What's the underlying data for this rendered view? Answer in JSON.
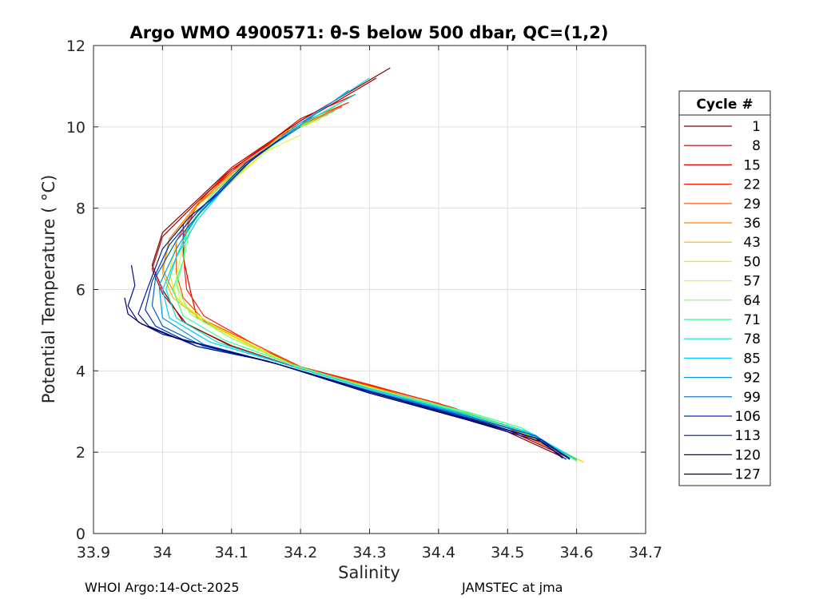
{
  "chart_data": {
    "type": "line",
    "title": "Argo WMO 4900571: θ-S below 500 dbar,  QC=(1,2)",
    "xlabel": "Salinity",
    "ylabel": "Potential Temperature ( °C)",
    "xlim": [
      33.9,
      34.7
    ],
    "ylim": [
      0,
      12
    ],
    "xticks": [
      33.9,
      34.0,
      34.1,
      34.2,
      34.3,
      34.4,
      34.5,
      34.6,
      34.7
    ],
    "yticks": [
      0,
      2,
      4,
      6,
      8,
      10,
      12
    ],
    "grid": true,
    "legend": {
      "title": "Cycle #",
      "position": "right",
      "entries": [
        {
          "label": "1",
          "color": "#800000"
        },
        {
          "label": "8",
          "color": "#b00000"
        },
        {
          "label": "15",
          "color": "#d90000"
        },
        {
          "label": "22",
          "color": "#ff1a00"
        },
        {
          "label": "29",
          "color": "#ff4d00"
        },
        {
          "label": "36",
          "color": "#ff8000"
        },
        {
          "label": "43",
          "color": "#ffb300"
        },
        {
          "label": "50",
          "color": "#ffe600"
        },
        {
          "label": "57",
          "color": "#ccff33"
        },
        {
          "label": "64",
          "color": "#80ff66"
        },
        {
          "label": "71",
          "color": "#33ff99"
        },
        {
          "label": "78",
          "color": "#00e6cc"
        },
        {
          "label": "85",
          "color": "#00ccff"
        },
        {
          "label": "92",
          "color": "#0099e6"
        },
        {
          "label": "99",
          "color": "#0066cc"
        },
        {
          "label": "106",
          "color": "#0033b3"
        },
        {
          "label": "113",
          "color": "#001a99"
        },
        {
          "label": "120",
          "color": "#000d80"
        },
        {
          "label": "127",
          "color": "#000066"
        }
      ]
    },
    "series": [
      {
        "name": "1",
        "color": "#800000",
        "points": [
          [
            34.33,
            11.45
          ],
          [
            34.2,
            10.15
          ],
          [
            34.1,
            9.0
          ],
          [
            34.05,
            8.2
          ],
          [
            34.0,
            7.4
          ],
          [
            33.985,
            6.6
          ],
          [
            34.0,
            6.0
          ],
          [
            34.03,
            5.2
          ],
          [
            34.1,
            4.6
          ],
          [
            34.2,
            4.05
          ],
          [
            34.3,
            3.6
          ],
          [
            34.4,
            3.05
          ],
          [
            34.5,
            2.5
          ],
          [
            34.58,
            1.88
          ]
        ]
      },
      {
        "name": "8",
        "color": "#b00000",
        "points": [
          [
            34.31,
            11.2
          ],
          [
            34.2,
            10.1
          ],
          [
            34.1,
            8.95
          ],
          [
            34.05,
            8.15
          ],
          [
            34.0,
            7.3
          ],
          [
            33.985,
            6.5
          ],
          [
            34.0,
            5.9
          ],
          [
            34.035,
            5.15
          ],
          [
            34.1,
            4.62
          ],
          [
            34.2,
            4.05
          ],
          [
            34.3,
            3.62
          ],
          [
            34.4,
            3.1
          ],
          [
            34.5,
            2.55
          ],
          [
            34.59,
            1.85
          ]
        ]
      },
      {
        "name": "15",
        "color": "#d90000",
        "points": [
          [
            34.28,
            10.8
          ],
          [
            34.2,
            10.2
          ],
          [
            34.11,
            9.05
          ],
          [
            34.06,
            8.3
          ],
          [
            34.03,
            7.6
          ],
          [
            34.03,
            6.8
          ],
          [
            34.04,
            6.0
          ],
          [
            34.05,
            5.3
          ],
          [
            34.12,
            4.7
          ],
          [
            34.2,
            4.1
          ],
          [
            34.3,
            3.65
          ],
          [
            34.4,
            3.2
          ],
          [
            34.5,
            2.6
          ],
          [
            34.6,
            1.8
          ]
        ]
      },
      {
        "name": "22",
        "color": "#ff1a00",
        "points": [
          [
            34.27,
            10.6
          ],
          [
            34.2,
            10.1
          ],
          [
            34.1,
            9.0
          ],
          [
            34.05,
            8.1
          ],
          [
            34.03,
            7.3
          ],
          [
            34.032,
            6.5
          ],
          [
            34.035,
            6.0
          ],
          [
            34.06,
            5.35
          ],
          [
            34.13,
            4.68
          ],
          [
            34.2,
            4.1
          ],
          [
            34.3,
            3.66
          ],
          [
            34.42,
            3.1
          ],
          [
            34.5,
            2.62
          ],
          [
            34.6,
            1.82
          ]
        ]
      },
      {
        "name": "29",
        "color": "#ff4d00",
        "points": [
          [
            34.26,
            10.5
          ],
          [
            34.2,
            10.05
          ],
          [
            34.1,
            8.9
          ],
          [
            34.05,
            8.05
          ],
          [
            34.02,
            7.2
          ],
          [
            34.02,
            6.4
          ],
          [
            34.03,
            5.8
          ],
          [
            34.06,
            5.25
          ],
          [
            34.14,
            4.6
          ],
          [
            34.2,
            4.08
          ],
          [
            34.3,
            3.63
          ],
          [
            34.4,
            3.15
          ],
          [
            34.5,
            2.6
          ],
          [
            34.6,
            1.8
          ]
        ]
      },
      {
        "name": "36",
        "color": "#ff8000",
        "points": [
          [
            34.25,
            10.4
          ],
          [
            34.19,
            9.95
          ],
          [
            34.1,
            8.85
          ],
          [
            34.05,
            8.1
          ],
          [
            34.01,
            7.25
          ],
          [
            34.0,
            6.5
          ],
          [
            34.02,
            5.8
          ],
          [
            34.06,
            5.2
          ],
          [
            34.13,
            4.62
          ],
          [
            34.2,
            4.07
          ],
          [
            34.3,
            3.62
          ],
          [
            34.4,
            3.12
          ],
          [
            34.51,
            2.55
          ],
          [
            34.6,
            1.8
          ]
        ]
      },
      {
        "name": "43",
        "color": "#ffb300",
        "points": [
          [
            34.24,
            10.3
          ],
          [
            34.18,
            9.9
          ],
          [
            34.1,
            8.8
          ],
          [
            34.05,
            8.05
          ],
          [
            34.01,
            7.2
          ],
          [
            34.0,
            6.4
          ],
          [
            34.015,
            5.8
          ],
          [
            34.06,
            5.2
          ],
          [
            34.13,
            4.6
          ],
          [
            34.2,
            4.07
          ],
          [
            34.3,
            3.6
          ],
          [
            34.42,
            3.08
          ],
          [
            34.52,
            2.55
          ],
          [
            34.61,
            1.75
          ]
        ]
      },
      {
        "name": "50",
        "color": "#ffe600",
        "points": [
          [
            34.23,
            10.2
          ],
          [
            34.18,
            9.85
          ],
          [
            34.11,
            8.8
          ],
          [
            34.06,
            8.0
          ],
          [
            34.02,
            7.2
          ],
          [
            34.01,
            6.4
          ],
          [
            34.02,
            5.8
          ],
          [
            34.06,
            5.2
          ],
          [
            34.13,
            4.6
          ],
          [
            34.2,
            4.06
          ],
          [
            34.3,
            3.6
          ],
          [
            34.42,
            3.05
          ],
          [
            34.52,
            2.52
          ],
          [
            34.61,
            1.76
          ]
        ]
      },
      {
        "name": "57",
        "color": "#ccff33",
        "points": [
          [
            34.2,
            9.8
          ],
          [
            34.15,
            9.4
          ],
          [
            34.1,
            8.7
          ],
          [
            34.05,
            7.9
          ],
          [
            34.03,
            7.1
          ],
          [
            34.02,
            6.3
          ],
          [
            34.025,
            5.7
          ],
          [
            34.07,
            5.15
          ],
          [
            34.14,
            4.55
          ],
          [
            34.2,
            4.05
          ],
          [
            34.3,
            3.58
          ],
          [
            34.43,
            3.0
          ],
          [
            34.52,
            2.5
          ],
          [
            34.6,
            1.78
          ]
        ]
      },
      {
        "name": "64",
        "color": "#80ff66",
        "points": [
          [
            34.25,
            10.5
          ],
          [
            34.2,
            10.05
          ],
          [
            34.12,
            9.1
          ],
          [
            34.07,
            8.3
          ],
          [
            34.04,
            7.5
          ],
          [
            34.03,
            6.7
          ],
          [
            34.02,
            6.1
          ],
          [
            34.04,
            5.4
          ],
          [
            34.1,
            4.8
          ],
          [
            34.18,
            4.2
          ],
          [
            34.3,
            3.58
          ],
          [
            34.43,
            3.02
          ],
          [
            34.52,
            2.55
          ],
          [
            34.6,
            1.78
          ]
        ]
      },
      {
        "name": "71",
        "color": "#33ff99",
        "points": [
          [
            34.25,
            10.4
          ],
          [
            34.2,
            10.0
          ],
          [
            34.12,
            9.1
          ],
          [
            34.07,
            8.3
          ],
          [
            34.035,
            7.45
          ],
          [
            34.03,
            6.7
          ],
          [
            34.015,
            6.0
          ],
          [
            34.03,
            5.35
          ],
          [
            34.09,
            4.75
          ],
          [
            34.18,
            4.2
          ],
          [
            34.3,
            3.57
          ],
          [
            34.44,
            3.0
          ],
          [
            34.52,
            2.6
          ],
          [
            34.6,
            1.8
          ]
        ]
      },
      {
        "name": "78",
        "color": "#00e6cc",
        "points": [
          [
            34.28,
            10.8
          ],
          [
            34.2,
            10.05
          ],
          [
            34.12,
            9.1
          ],
          [
            34.08,
            8.4
          ],
          [
            34.04,
            7.6
          ],
          [
            34.02,
            6.8
          ],
          [
            34.005,
            6.0
          ],
          [
            34.02,
            5.3
          ],
          [
            34.08,
            4.7
          ],
          [
            34.18,
            4.15
          ],
          [
            34.3,
            3.55
          ],
          [
            34.44,
            2.95
          ],
          [
            34.53,
            2.5
          ],
          [
            34.6,
            1.82
          ]
        ]
      },
      {
        "name": "85",
        "color": "#00ccff",
        "points": [
          [
            34.3,
            11.2
          ],
          [
            34.2,
            10.1
          ],
          [
            34.13,
            9.2
          ],
          [
            34.09,
            8.5
          ],
          [
            34.05,
            7.7
          ],
          [
            34.02,
            6.8
          ],
          [
            34.0,
            6.0
          ],
          [
            34.01,
            5.3
          ],
          [
            34.07,
            4.7
          ],
          [
            34.17,
            4.2
          ],
          [
            34.3,
            3.55
          ],
          [
            34.44,
            2.92
          ],
          [
            34.53,
            2.45
          ],
          [
            34.6,
            1.82
          ]
        ]
      },
      {
        "name": "92",
        "color": "#0099e6",
        "points": [
          [
            34.27,
            10.9
          ],
          [
            34.2,
            10.05
          ],
          [
            34.13,
            9.2
          ],
          [
            34.09,
            8.5
          ],
          [
            34.05,
            7.8
          ],
          [
            34.02,
            7.0
          ],
          [
            33.995,
            6.1
          ],
          [
            34.0,
            5.3
          ],
          [
            34.06,
            4.65
          ],
          [
            34.16,
            4.2
          ],
          [
            34.3,
            3.52
          ],
          [
            34.44,
            2.9
          ],
          [
            34.54,
            2.42
          ],
          [
            34.59,
            1.84
          ]
        ]
      },
      {
        "name": "99",
        "color": "#0066cc",
        "points": [
          [
            34.2,
            10.0
          ],
          [
            34.14,
            9.35
          ],
          [
            34.1,
            8.7
          ],
          [
            34.06,
            8.0
          ],
          [
            34.02,
            7.2
          ],
          [
            33.99,
            6.3
          ],
          [
            33.985,
            5.6
          ],
          [
            34.0,
            5.1
          ],
          [
            34.06,
            4.6
          ],
          [
            34.15,
            4.25
          ],
          [
            34.3,
            3.5
          ],
          [
            34.44,
            2.88
          ],
          [
            34.54,
            2.4
          ],
          [
            34.59,
            1.85
          ]
        ]
      },
      {
        "name": "106",
        "color": "#0033b3",
        "points": [
          [
            34.18,
            9.8
          ],
          [
            34.12,
            9.1
          ],
          [
            34.08,
            8.4
          ],
          [
            34.05,
            7.9
          ],
          [
            34.01,
            7.1
          ],
          [
            33.985,
            6.2
          ],
          [
            33.975,
            5.5
          ],
          [
            33.99,
            5.1
          ],
          [
            34.05,
            4.6
          ],
          [
            34.15,
            4.25
          ],
          [
            34.3,
            3.5
          ],
          [
            34.44,
            2.85
          ],
          [
            34.54,
            2.35
          ],
          [
            34.59,
            1.85
          ]
        ]
      },
      {
        "name": "113",
        "color": "#001a99",
        "points": [
          [
            34.17,
            9.7
          ],
          [
            34.12,
            9.05
          ],
          [
            34.08,
            8.35
          ],
          [
            34.04,
            7.8
          ],
          [
            34.0,
            7.0
          ],
          [
            33.98,
            6.1
          ],
          [
            33.965,
            5.4
          ],
          [
            33.98,
            5.1
          ],
          [
            34.05,
            4.6
          ],
          [
            34.15,
            4.25
          ],
          [
            34.3,
            3.48
          ],
          [
            34.44,
            2.85
          ],
          [
            34.54,
            2.35
          ],
          [
            34.585,
            1.82
          ]
        ]
      },
      {
        "name": "120",
        "color": "#000d80",
        "points": [
          [
            33.955,
            6.6
          ],
          [
            33.96,
            6.1
          ],
          [
            33.95,
            5.6
          ],
          [
            33.965,
            5.2
          ],
          [
            34.0,
            4.9
          ],
          [
            34.08,
            4.55
          ],
          [
            34.16,
            4.2
          ],
          [
            34.3,
            3.48
          ],
          [
            34.44,
            2.82
          ],
          [
            34.55,
            2.3
          ],
          [
            34.59,
            1.82
          ]
        ]
      },
      {
        "name": "127",
        "color": "#000066",
        "points": [
          [
            33.945,
            5.8
          ],
          [
            33.95,
            5.4
          ],
          [
            33.97,
            5.15
          ],
          [
            34.02,
            4.8
          ],
          [
            34.1,
            4.45
          ],
          [
            34.17,
            4.15
          ],
          [
            34.3,
            3.45
          ],
          [
            34.44,
            2.8
          ],
          [
            34.55,
            2.25
          ],
          [
            34.58,
            1.85
          ]
        ]
      }
    ]
  },
  "footer": {
    "left": "WHOI Argo:14-Oct-2025",
    "right": "JAMSTEC at jma"
  }
}
